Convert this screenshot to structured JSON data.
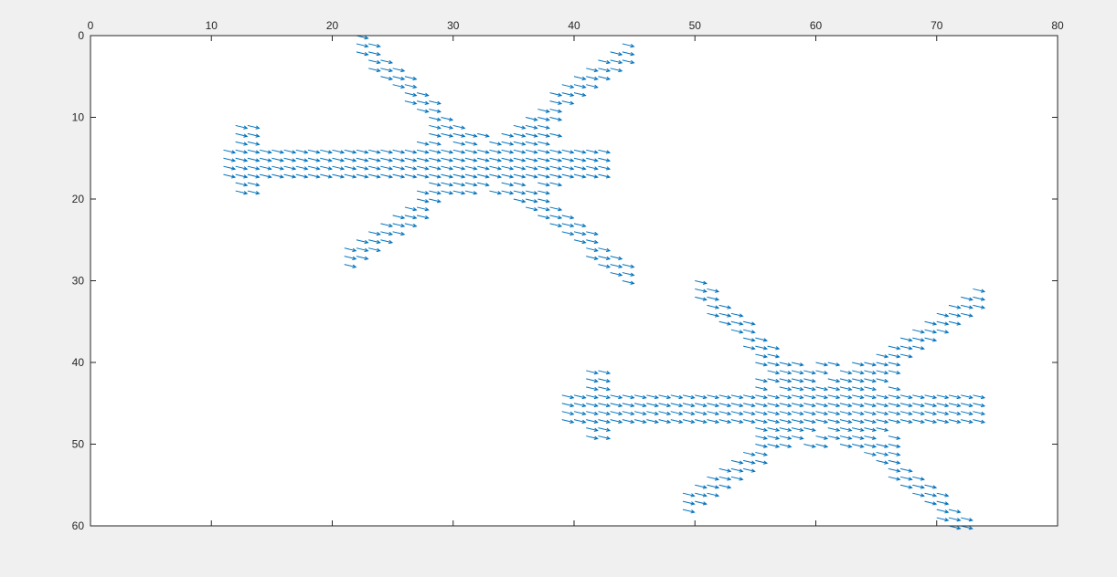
{
  "figure": {
    "background": "#f0f0f0"
  },
  "chart_data": {
    "type": "quiver",
    "title": "",
    "xlabel": "",
    "ylabel": "",
    "xlim": [
      0,
      80
    ],
    "ylim": [
      0,
      60
    ],
    "y_direction": "reversed",
    "x_axis_location": "top",
    "grid": false,
    "legend": "none",
    "colors": {
      "arrows": "#0072bd",
      "axes": "#262626",
      "background": "#ffffff"
    },
    "x_ticks": [
      0,
      10,
      20,
      30,
      40,
      50,
      60,
      70,
      80
    ],
    "y_ticks": [
      0,
      10,
      20,
      30,
      40,
      50,
      60
    ],
    "x_tick_labels": [
      "0",
      "10",
      "20",
      "30",
      "40",
      "50",
      "60",
      "70",
      "80"
    ],
    "y_tick_labels": [
      "0",
      "10",
      "20",
      "30",
      "40",
      "50",
      "60"
    ],
    "arrow_vector": {
      "u": 1.0,
      "v": 0.35
    },
    "shapes": [
      {
        "name": "upper airplane",
        "center": [
          32,
          15
        ],
        "body_x": [
          10.5,
          42
        ],
        "body_y": 15,
        "fuselage_halfwidth": 1.5,
        "center_box": {
          "x": [
            27,
            38
          ],
          "y": [
            12,
            19
          ]
        },
        "tail_x": 11.5,
        "tail_y": [
          11,
          19
        ],
        "wing_tips": [
          [
            22,
            1
          ],
          [
            44,
            2
          ],
          [
            21,
            27
          ],
          [
            44,
            29
          ]
        ]
      },
      {
        "name": "lower airplane",
        "center": [
          60,
          45
        ],
        "body_x": [
          38.5,
          73
        ],
        "body_y": 45,
        "fuselage_halfwidth": 1.5,
        "center_box": {
          "x": [
            55,
            66
          ],
          "y": [
            40,
            50
          ]
        },
        "tail_x": 40.5,
        "tail_y": [
          41,
          49
        ],
        "wing_tips": [
          [
            50,
            31
          ],
          [
            73,
            32
          ],
          [
            49,
            57
          ],
          [
            72,
            60
          ]
        ]
      }
    ]
  }
}
